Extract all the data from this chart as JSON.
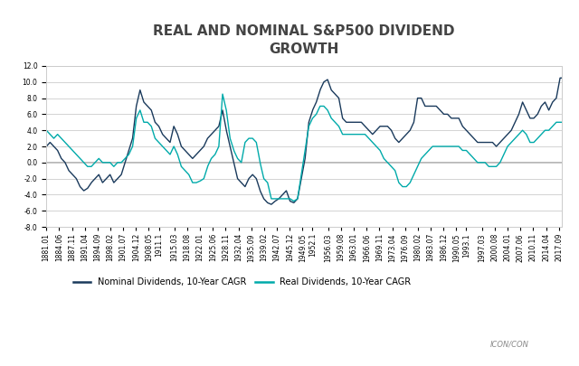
{
  "title": "REAL AND NOMINAL S&P500 DIVIDEND\nGROWTH",
  "nominal_color": "#1a3a5c",
  "real_color": "#00aaaa",
  "legend_nominal": "Nominal Dividends, 10-Year CAGR",
  "legend_real": "Real Dividends, 10-Year CAGR",
  "ylim": [
    -8.0,
    12.0
  ],
  "yticks": [
    -8.0,
    -6.0,
    -4.0,
    -2.0,
    0.0,
    2.0,
    4.0,
    6.0,
    8.0,
    10.0,
    12.0
  ],
  "bg_color": "#ffffff",
  "grid_color": "#cccccc",
  "zero_line_color": "#aaaaaa",
  "title_fontsize": 11,
  "tick_fontsize": 5.5,
  "legend_fontsize": 7,
  "x_ticks_labels": [
    "1881.01",
    "1884.06",
    "1887.11",
    "1891.04",
    "1894.09",
    "1898.02",
    "1901.07",
    "1904.12",
    "1908.05",
    "1911.1",
    "1915.03",
    "1918.08",
    "1922.01",
    "1925.06",
    "1928.11",
    "1932.04",
    "1935.09",
    "1939.02",
    "1942.07",
    "1945.12",
    "1949.05",
    "1952.1",
    "1956.03",
    "1959.08",
    "1963.01",
    "1966.06",
    "1969.11",
    "1973.04",
    "1976.09",
    "1980.02",
    "1983.07",
    "1986.12",
    "1990.05",
    "1993.1",
    "1997.03",
    "2000.08",
    "2004.01",
    "2007.06",
    "2010.11",
    "2014.04",
    "2017.09"
  ],
  "nominal_pts_years": [
    1881,
    1882,
    1883,
    1884,
    1885,
    1886,
    1887,
    1888,
    1889,
    1890,
    1891,
    1892,
    1893,
    1894,
    1895,
    1896,
    1897,
    1898,
    1899,
    1900,
    1901,
    1902,
    1903,
    1904,
    1905,
    1906,
    1907,
    1908,
    1909,
    1910,
    1911,
    1912,
    1913,
    1914,
    1915,
    1916,
    1917,
    1918,
    1919,
    1920,
    1921,
    1922,
    1923,
    1924,
    1925,
    1926,
    1927,
    1928,
    1929,
    1930,
    1931,
    1932,
    1933,
    1934,
    1935,
    1936,
    1937,
    1938,
    1939,
    1940,
    1941,
    1942,
    1943,
    1944,
    1945,
    1946,
    1947,
    1948,
    1949,
    1950,
    1951,
    1952,
    1953,
    1954,
    1955,
    1956,
    1957,
    1958,
    1959,
    1960,
    1961,
    1962,
    1963,
    1964,
    1965,
    1966,
    1967,
    1968,
    1969,
    1970,
    1971,
    1972,
    1973,
    1974,
    1975,
    1976,
    1977,
    1978,
    1979,
    1980,
    1981,
    1982,
    1983,
    1984,
    1985,
    1986,
    1987,
    1988,
    1989,
    1990,
    1991,
    1992,
    1993,
    1994,
    1995,
    1996,
    1997,
    1998,
    1999,
    2000,
    2001,
    2002,
    2003,
    2004,
    2005,
    2006,
    2007,
    2008,
    2009,
    2010,
    2011,
    2012,
    2013,
    2014,
    2015,
    2016,
    2017,
    2018
  ],
  "nominal_pts_vals": [
    2.0,
    2.5,
    2.0,
    1.5,
    0.5,
    0.0,
    -1.0,
    -1.5,
    -2.0,
    -3.0,
    -3.5,
    -3.2,
    -2.5,
    -2.0,
    -1.5,
    -2.5,
    -2.0,
    -1.5,
    -2.5,
    -2.0,
    -1.5,
    0.0,
    1.5,
    3.0,
    7.0,
    9.0,
    7.5,
    7.0,
    6.5,
    5.0,
    4.5,
    3.5,
    3.0,
    2.5,
    4.5,
    3.5,
    2.0,
    1.5,
    1.0,
    0.5,
    1.0,
    1.5,
    2.0,
    3.0,
    3.5,
    4.0,
    4.5,
    6.5,
    4.0,
    2.0,
    0.0,
    -2.0,
    -2.5,
    -3.0,
    -2.0,
    -1.5,
    -2.0,
    -3.5,
    -4.5,
    -5.0,
    -5.2,
    -4.8,
    -4.5,
    -4.0,
    -3.5,
    -4.8,
    -5.0,
    -4.5,
    -2.0,
    0.5,
    5.0,
    6.5,
    7.5,
    9.0,
    10.0,
    10.3,
    9.0,
    8.5,
    8.0,
    5.5,
    5.0,
    5.0,
    5.0,
    5.0,
    5.0,
    4.5,
    4.0,
    3.5,
    4.0,
    4.5,
    4.5,
    4.5,
    4.0,
    3.0,
    2.5,
    3.0,
    3.5,
    4.0,
    5.0,
    8.0,
    8.0,
    7.0,
    7.0,
    7.0,
    7.0,
    6.5,
    6.0,
    6.0,
    5.5,
    5.5,
    5.5,
    4.5,
    4.0,
    3.5,
    3.0,
    2.5,
    2.5,
    2.5,
    2.5,
    2.5,
    2.0,
    2.5,
    3.0,
    3.5,
    4.0,
    5.0,
    6.0,
    7.5,
    6.5,
    5.5,
    5.5,
    6.0,
    7.0,
    7.5,
    6.5,
    7.5,
    8.0,
    10.5
  ],
  "real_pts_years": [
    1881,
    1882,
    1883,
    1884,
    1885,
    1886,
    1887,
    1888,
    1889,
    1890,
    1891,
    1892,
    1893,
    1894,
    1895,
    1896,
    1897,
    1898,
    1899,
    1900,
    1901,
    1902,
    1903,
    1904,
    1905,
    1906,
    1907,
    1908,
    1909,
    1910,
    1911,
    1912,
    1913,
    1914,
    1915,
    1916,
    1917,
    1918,
    1919,
    1920,
    1921,
    1922,
    1923,
    1924,
    1925,
    1926,
    1927,
    1928,
    1929,
    1930,
    1931,
    1932,
    1933,
    1934,
    1935,
    1936,
    1937,
    1938,
    1939,
    1940,
    1941,
    1942,
    1943,
    1944,
    1945,
    1946,
    1947,
    1948,
    1949,
    1950,
    1951,
    1952,
    1953,
    1954,
    1955,
    1956,
    1957,
    1958,
    1959,
    1960,
    1961,
    1962,
    1963,
    1964,
    1965,
    1966,
    1967,
    1968,
    1969,
    1970,
    1971,
    1972,
    1973,
    1974,
    1975,
    1976,
    1977,
    1978,
    1979,
    1980,
    1981,
    1982,
    1983,
    1984,
    1985,
    1986,
    1987,
    1988,
    1989,
    1990,
    1991,
    1992,
    1993,
    1994,
    1995,
    1996,
    1997,
    1998,
    1999,
    2000,
    2001,
    2002,
    2003,
    2004,
    2005,
    2006,
    2007,
    2008,
    2009,
    2010,
    2011,
    2012,
    2013,
    2014,
    2015,
    2016,
    2017,
    2018
  ],
  "real_pts_vals": [
    4.0,
    3.5,
    3.0,
    3.5,
    3.0,
    2.5,
    2.0,
    1.5,
    1.0,
    0.5,
    0.0,
    -0.5,
    -0.5,
    0.0,
    0.5,
    0.0,
    0.0,
    0.0,
    -0.5,
    0.0,
    0.0,
    0.5,
    1.0,
    2.0,
    5.5,
    6.5,
    5.0,
    5.0,
    4.5,
    3.0,
    2.5,
    2.0,
    1.5,
    1.0,
    2.0,
    1.0,
    -0.5,
    -1.0,
    -1.5,
    -2.5,
    -2.5,
    -2.3,
    -2.0,
    -0.5,
    0.5,
    1.0,
    2.0,
    8.5,
    6.5,
    3.0,
    1.5,
    0.5,
    0.0,
    2.5,
    3.0,
    3.0,
    2.5,
    0.0,
    -2.0,
    -2.5,
    -4.5,
    -4.5,
    -4.5,
    -4.5,
    -4.5,
    -4.5,
    -4.8,
    -4.5,
    -1.5,
    1.5,
    4.5,
    5.5,
    6.0,
    7.0,
    7.0,
    6.5,
    5.5,
    5.0,
    4.5,
    3.5,
    3.5,
    3.5,
    3.5,
    3.5,
    3.5,
    3.5,
    3.0,
    2.5,
    2.0,
    1.5,
    0.5,
    0.0,
    -0.5,
    -1.0,
    -2.5,
    -3.0,
    -3.0,
    -2.5,
    -1.5,
    -0.5,
    0.5,
    1.0,
    1.5,
    2.0,
    2.0,
    2.0,
    2.0,
    2.0,
    2.0,
    2.0,
    2.0,
    1.5,
    1.5,
    1.0,
    0.5,
    0.0,
    0.0,
    0.0,
    -0.5,
    -0.5,
    -0.5,
    0.0,
    1.0,
    2.0,
    2.5,
    3.0,
    3.5,
    4.0,
    3.5,
    2.5,
    2.5,
    3.0,
    3.5,
    4.0,
    4.0,
    4.5,
    5.0,
    5.0
  ]
}
